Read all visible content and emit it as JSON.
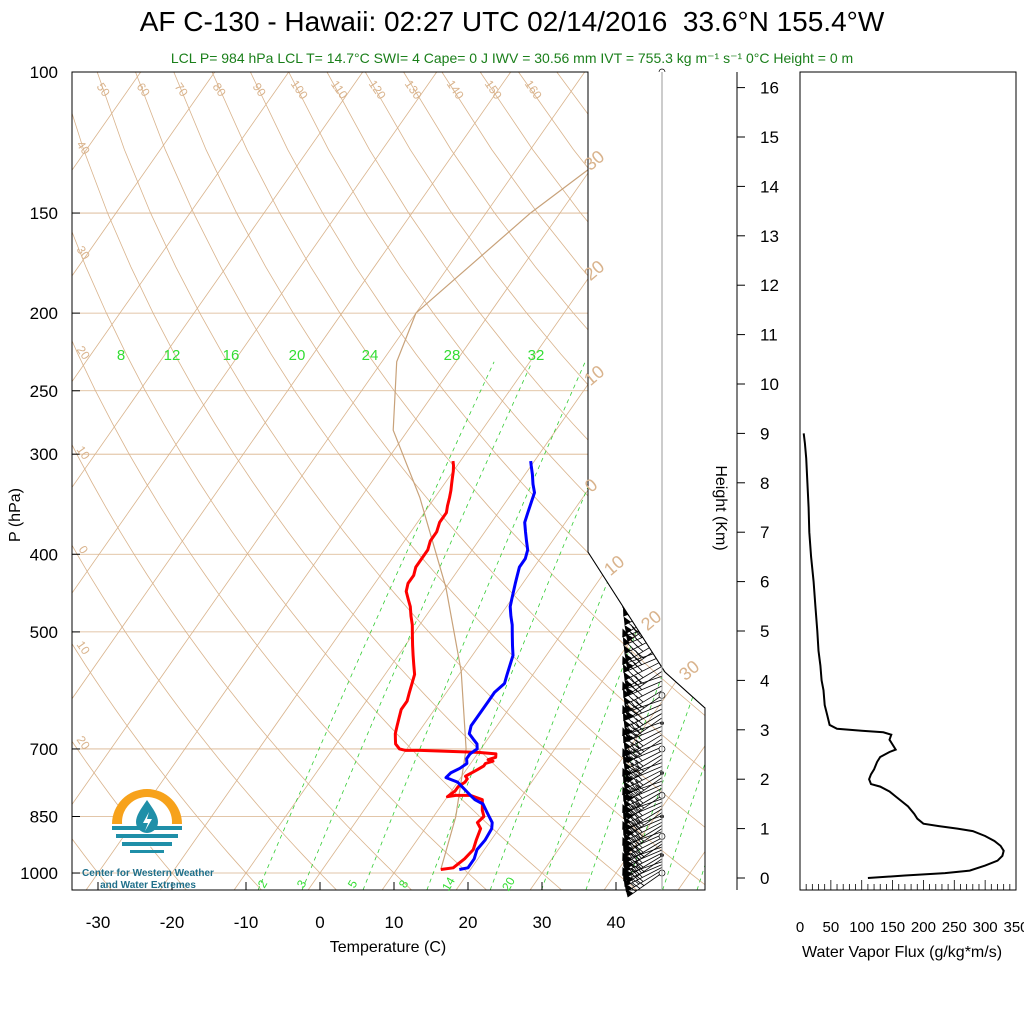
{
  "title_main": "AF C-130 - Hawaii: 02:27 UTC 02/14/2016",
  "title_loc": "33.6°N 155.4°W",
  "subtitle": "LCL P= 984 hPa  LCL T= 14.7°C  SWI= 4  Cape= 0 J  IWV = 30.56 mm  IVT = 755.3 kg m⁻¹ s⁻¹  0°C Height = 0 m",
  "logo_text_line1": "Center for Western Weather",
  "logo_text_line2": "and Water Extremes",
  "colors": {
    "temperature": "#ff0000",
    "dewpoint": "#0000ff",
    "isotherm": "#d9b38c",
    "mixing_ratio": "#33cc33",
    "parcel": "#c8a27a",
    "subtitle": "#1a7f1a",
    "logo_orange": "#f7a21b",
    "logo_teal": "#1f8fa8"
  },
  "chart_data": [
    {
      "type": "line",
      "name": "skew-T",
      "xlabel": "Temperature (C)",
      "ylabel": "P (hPa)",
      "y2label": "Height (Km)",
      "xlim": [
        -35,
        50
      ],
      "ylim": [
        1050,
        100
      ],
      "y_scale": "log",
      "x_ticks": [
        -30,
        -20,
        -10,
        0,
        10,
        20,
        30,
        40
      ],
      "p_ticks": [
        100,
        150,
        200,
        250,
        300,
        400,
        500,
        700,
        850,
        1000
      ],
      "height_ticks": [
        0,
        1,
        2,
        3,
        4,
        5,
        6,
        7,
        8,
        9,
        10,
        11,
        12,
        13,
        14,
        15,
        16
      ],
      "mixing_ratio_labels_top": [
        "8",
        "12",
        "16",
        "20",
        "24",
        "28",
        "32"
      ],
      "mixing_ratio_labels_bottom": [
        "2",
        "3",
        "5",
        "8",
        "14",
        "20"
      ],
      "dry_adiabat_labels": [
        "50",
        "60",
        "70",
        "80",
        "90",
        "100",
        "110",
        "120",
        "130",
        "140",
        "150",
        "160"
      ],
      "isotherm_labels_left": [
        "40",
        "30",
        "20",
        "10",
        "0",
        "10",
        "20"
      ],
      "isotherm_labels_right": [
        "30",
        "20",
        "10",
        "0",
        "10",
        "20",
        "30"
      ],
      "series": [
        {
          "name": "Temperature",
          "points": [
            [
              16,
              990
            ],
            [
              17.5,
              985
            ],
            [
              18.2,
              960
            ],
            [
              18.5,
              935
            ],
            [
              18,
              910
            ],
            [
              17.5,
              880
            ],
            [
              16.5,
              865
            ],
            [
              16.8,
              850
            ],
            [
              16,
              835
            ],
            [
              15.5,
              822
            ],
            [
              15,
              810
            ],
            [
              13,
              800
            ],
            [
              11,
              800
            ],
            [
              10,
              803
            ],
            [
              10.5,
              790
            ],
            [
              10.5,
              780
            ],
            [
              11,
              770
            ],
            [
              11,
              763
            ],
            [
              10.5,
              757
            ],
            [
              11,
              750
            ],
            [
              11.5,
              743
            ],
            [
              12,
              735
            ],
            [
              12,
              730
            ],
            [
              12.8,
              725
            ],
            [
              12,
              722
            ],
            [
              12.8,
              717
            ],
            [
              12.5,
              710
            ],
            [
              10,
              707
            ],
            [
              6,
              705
            ],
            [
              2,
              703
            ],
            [
              0,
              703
            ],
            [
              -1,
              700
            ],
            [
              -2,
              690
            ],
            [
              -2.5,
              680
            ],
            [
              -3,
              670
            ],
            [
              -3.5,
              655
            ],
            [
              -4,
              640
            ],
            [
              -4.5,
              625
            ],
            [
              -4.5,
              610
            ],
            [
              -5,
              595
            ],
            [
              -5.5,
              580
            ],
            [
              -6,
              565
            ],
            [
              -7,
              550
            ],
            [
              -8,
              535
            ],
            [
              -9,
              520
            ],
            [
              -10,
              505
            ],
            [
              -11,
              490
            ],
            [
              -12,
              478
            ],
            [
              -13,
              465
            ],
            [
              -14,
              455
            ],
            [
              -15,
              445
            ],
            [
              -15.5,
              435
            ],
            [
              -15.5,
              425
            ],
            [
              -16,
              415
            ],
            [
              -16,
              405
            ],
            [
              -16,
              395
            ],
            [
              -16.5,
              385
            ],
            [
              -16.5,
              375
            ],
            [
              -17,
              365
            ],
            [
              -17,
              355
            ],
            [
              -17.5,
              348
            ],
            [
              -18,
              340
            ],
            [
              -18.5,
              333
            ],
            [
              -19,
              327
            ],
            [
              -19.5,
              321
            ],
            [
              -20,
              315
            ],
            [
              -20.5,
              310
            ],
            [
              -21,
              306
            ]
          ]
        },
        {
          "name": "Dewpoint",
          "points": [
            [
              18.5,
              990
            ],
            [
              19.5,
              985
            ],
            [
              19.5,
              960
            ],
            [
              19,
              935
            ],
            [
              19.2,
              910
            ],
            [
              19,
              880
            ],
            [
              18.5,
              865
            ],
            [
              17.5,
              850
            ],
            [
              16.5,
              835
            ],
            [
              15.5,
              820
            ],
            [
              14,
              810
            ],
            [
              13,
              800
            ],
            [
              12,
              790
            ],
            [
              11,
              780
            ],
            [
              10,
              770
            ],
            [
              8,
              760
            ],
            [
              8.2,
              750
            ],
            [
              9,
              740
            ],
            [
              9.5,
              730
            ],
            [
              9,
              720
            ],
            [
              9,
              710
            ],
            [
              9.5,
              700
            ],
            [
              9,
              690
            ],
            [
              8,
              680
            ],
            [
              7,
              670
            ],
            [
              6.5,
              655
            ],
            [
              6.5,
              640
            ],
            [
              6.5,
              625
            ],
            [
              6.5,
              610
            ],
            [
              6.5,
              595
            ],
            [
              7,
              580
            ],
            [
              6.5,
              565
            ],
            [
              6,
              550
            ],
            [
              5.5,
              535
            ],
            [
              4.5,
              520
            ],
            [
              3.5,
              505
            ],
            [
              2.5,
              490
            ],
            [
              1.5,
              478
            ],
            [
              0.5,
              465
            ],
            [
              0,
              455
            ],
            [
              -0.5,
              445
            ],
            [
              -1,
              435
            ],
            [
              -1.5,
              425
            ],
            [
              -2,
              415
            ],
            [
              -2,
              405
            ],
            [
              -2.5,
              395
            ],
            [
              -3.5,
              385
            ],
            [
              -4.5,
              375
            ],
            [
              -5.5,
              365
            ],
            [
              -6,
              355
            ],
            [
              -6.5,
              345
            ],
            [
              -7,
              335
            ],
            [
              -8,
              327
            ],
            [
              -9,
              318
            ],
            [
              -10,
              310
            ],
            [
              -10.5,
              306
            ]
          ]
        }
      ]
    },
    {
      "type": "line",
      "name": "water-vapor-flux",
      "xlabel": "Water Vapor Flux (g/kg*m/s)",
      "ylabel": "",
      "xlim": [
        0,
        350
      ],
      "ylim": [
        0,
        16.5
      ],
      "x_ticks": [
        0,
        50,
        100,
        150,
        200,
        250,
        300,
        350
      ],
      "x_tick_labels": [
        "0",
        "50",
        "100",
        "150",
        "200",
        "250",
        "300",
        "350"
      ],
      "series": [
        {
          "name": "",
          "points": [
            [
              110,
              0
            ],
            [
              170,
              0.05
            ],
            [
              235,
              0.1
            ],
            [
              275,
              0.15
            ],
            [
              300,
              0.25
            ],
            [
              320,
              0.35
            ],
            [
              328,
              0.45
            ],
            [
              330,
              0.55
            ],
            [
              325,
              0.65
            ],
            [
              315,
              0.75
            ],
            [
              300,
              0.85
            ],
            [
              280,
              0.95
            ],
            [
              255,
              1
            ],
            [
              225,
              1.05
            ],
            [
              200,
              1.1
            ],
            [
              190,
              1.2
            ],
            [
              185,
              1.3
            ],
            [
              175,
              1.45
            ],
            [
              165,
              1.55
            ],
            [
              155,
              1.65
            ],
            [
              145,
              1.75
            ],
            [
              130,
              1.85
            ],
            [
              115,
              1.9
            ],
            [
              112,
              2
            ],
            [
              115,
              2.1
            ],
            [
              120,
              2.2
            ],
            [
              125,
              2.35
            ],
            [
              130,
              2.45
            ],
            [
              145,
              2.55
            ],
            [
              155,
              2.6
            ],
            [
              150,
              2.7
            ],
            [
              145,
              2.8
            ],
            [
              148,
              2.9
            ],
            [
              135,
              2.95
            ],
            [
              100,
              2.98
            ],
            [
              60,
              3.02
            ],
            [
              48,
              3.1
            ],
            [
              44,
              3.3
            ],
            [
              40,
              3.5
            ],
            [
              38,
              3.8
            ],
            [
              35,
              4
            ],
            [
              33,
              4.3
            ],
            [
              30,
              4.6
            ],
            [
              28,
              5
            ],
            [
              25,
              5.5
            ],
            [
              22,
              6
            ],
            [
              18,
              6.5
            ],
            [
              15,
              7
            ],
            [
              14,
              7.5
            ],
            [
              12,
              8
            ],
            [
              10,
              8.5
            ],
            [
              8,
              8.8
            ],
            [
              6,
              9
            ]
          ]
        }
      ]
    }
  ]
}
